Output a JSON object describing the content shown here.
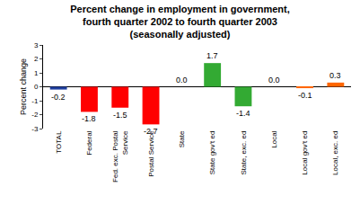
{
  "chart_data": {
    "type": "bar",
    "title": [
      "Percent change in employment in government,",
      "fourth quarter 2002 to fourth quarter 2003",
      "(seasonally adjusted)"
    ],
    "y_label": "Percent change",
    "categories": [
      "TOTAL",
      "Federal",
      "Fed. exc. Postal Service",
      "Postal Service",
      "State",
      "State gov't ed",
      "State, exc. ed",
      "Local",
      "Local gov't ed",
      "Local, exc. ed"
    ],
    "values": [
      -0.2,
      -1.8,
      -1.5,
      -2.7,
      0.0,
      1.7,
      -1.4,
      0.0,
      -0.1,
      0.3
    ],
    "value_labels": [
      "-0.2",
      "-1.8",
      "-1.5",
      "-2.7",
      "0.0",
      "1.7",
      "-1.4",
      "0.0",
      "-0.1",
      "0.3"
    ],
    "colors": [
      "#1f3f9f",
      "#ff0000",
      "#ff0000",
      "#ff0000",
      "#33aa33",
      "#33aa33",
      "#33aa33",
      "#ff6600",
      "#ff6600",
      "#ff6600"
    ],
    "ylim": [
      -3,
      3
    ],
    "yticks": [
      -3,
      -2,
      -1,
      0,
      1,
      2,
      3
    ],
    "data_labels": true,
    "grid": false
  }
}
